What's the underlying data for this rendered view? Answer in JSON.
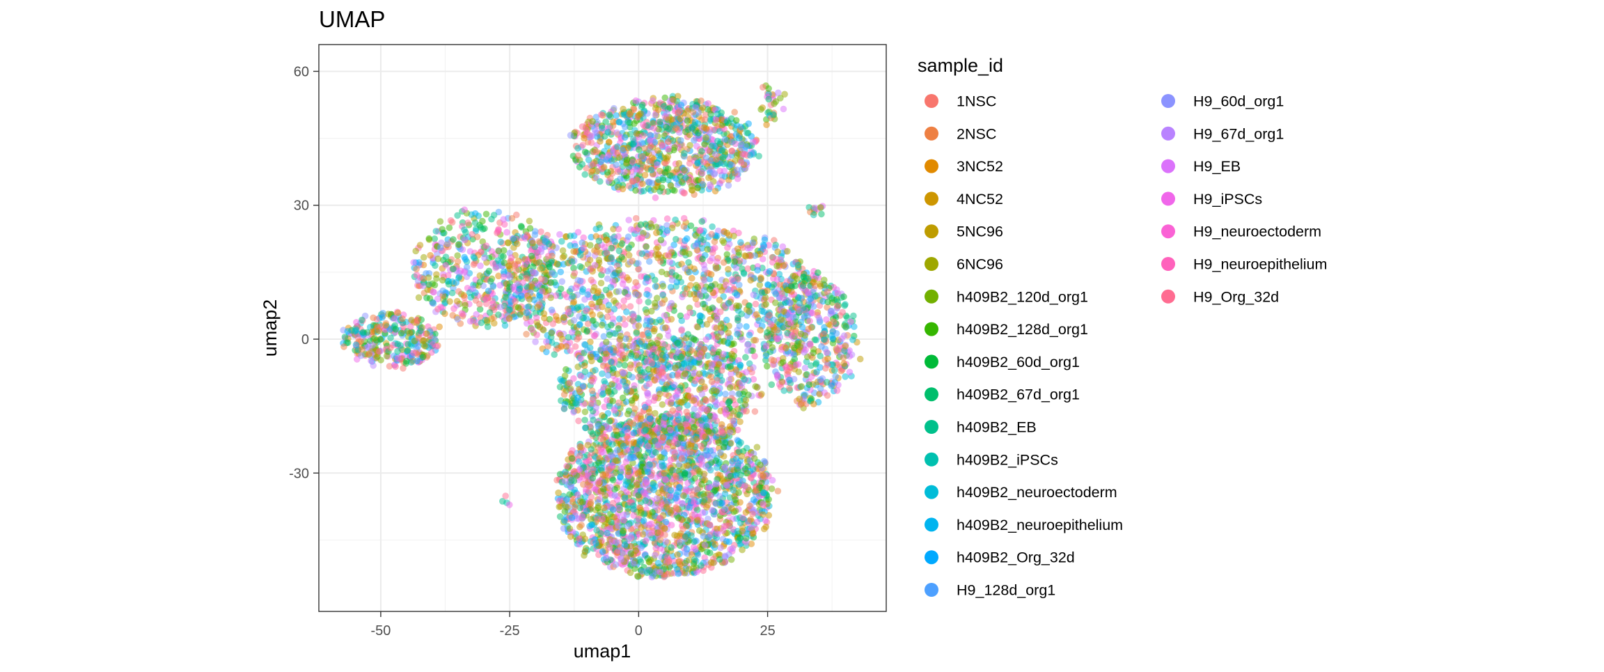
{
  "chart_data": {
    "type": "scatter",
    "title": "UMAP",
    "xlabel": "umap1",
    "ylabel": "umap2",
    "xlim": [
      -62,
      48
    ],
    "ylim": [
      -61,
      66
    ],
    "x_ticks": [
      -50,
      -25,
      0,
      25
    ],
    "y_ticks": [
      -30,
      0,
      30,
      60
    ],
    "x_tick_labels": [
      "-50",
      "-25",
      "0",
      "25"
    ],
    "y_tick_labels": [
      "-30",
      "0",
      "30",
      "60"
    ],
    "grid": true,
    "legend": {
      "title": "sample_id",
      "placement": "right",
      "columns": 2
    },
    "series": [
      {
        "name": "1NSC",
        "color": "#F8766D"
      },
      {
        "name": "2NSC",
        "color": "#EE8043"
      },
      {
        "name": "3NC52",
        "color": "#E18A00"
      },
      {
        "name": "4NC52",
        "color": "#CD9600"
      },
      {
        "name": "5NC96",
        "color": "#BE9C00"
      },
      {
        "name": "6NC96",
        "color": "#9EA700"
      },
      {
        "name": "h409B2_120d_org1",
        "color": "#72B000"
      },
      {
        "name": "h409B2_128d_org1",
        "color": "#35B600"
      },
      {
        "name": "h409B2_60d_org1",
        "color": "#00BA38"
      },
      {
        "name": "h409B2_67d_org1",
        "color": "#00BE6C"
      },
      {
        "name": "h409B2_EB",
        "color": "#00C08B"
      },
      {
        "name": "h409B2_iPSCs",
        "color": "#00C0AF"
      },
      {
        "name": "h409B2_neuroectoderm",
        "color": "#00BCD8"
      },
      {
        "name": "h409B2_neuroepithelium",
        "color": "#00B4EF"
      },
      {
        "name": "h409B2_Org_32d",
        "color": "#00A9FF"
      },
      {
        "name": "H9_128d_org1",
        "color": "#4DA0FF"
      },
      {
        "name": "H9_60d_org1",
        "color": "#8B93FF"
      },
      {
        "name": "H9_67d_org1",
        "color": "#B983FF"
      },
      {
        "name": "H9_EB",
        "color": "#DB72FB"
      },
      {
        "name": "H9_iPSCs",
        "color": "#F066EA"
      },
      {
        "name": "H9_neuroectoderm",
        "color": "#FA62D5"
      },
      {
        "name": "H9_neuroepithelium",
        "color": "#FF62BC"
      },
      {
        "name": "H9_Org_32d",
        "color": "#FF6C91"
      }
    ],
    "clusters": [
      {
        "cx": 5,
        "cy": 43,
        "rx": 18,
        "ry": 11,
        "n": 900
      },
      {
        "cx": 4,
        "cy": 10,
        "rx": 30,
        "ry": 17,
        "n": 1300
      },
      {
        "cx": -30,
        "cy": 16,
        "rx": 14,
        "ry": 13,
        "n": 500
      },
      {
        "cx": -48,
        "cy": 0,
        "rx": 9,
        "ry": 6,
        "n": 300
      },
      {
        "cx": 33,
        "cy": 0,
        "rx": 9,
        "ry": 15,
        "n": 450
      },
      {
        "cx": 5,
        "cy": -35,
        "rx": 21,
        "ry": 18,
        "n": 1900
      },
      {
        "cx": 4,
        "cy": -12,
        "rx": 20,
        "ry": 12,
        "n": 800
      },
      {
        "cx": 26,
        "cy": 53,
        "rx": 2,
        "ry": 5,
        "n": 30
      },
      {
        "cx": 34,
        "cy": 29,
        "rx": 1,
        "ry": 1,
        "n": 12
      },
      {
        "cx": -26,
        "cy": -36,
        "rx": 0.5,
        "ry": 0.4,
        "n": 4
      }
    ]
  }
}
